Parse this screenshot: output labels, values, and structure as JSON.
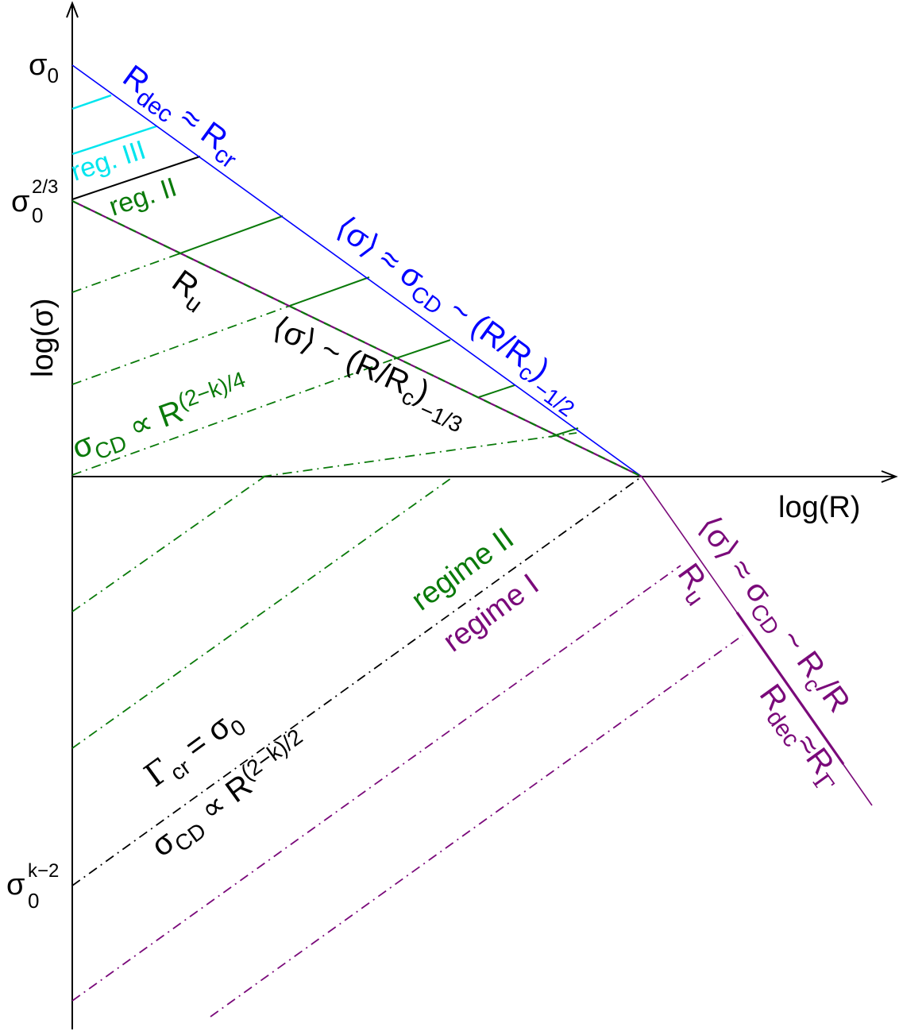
{
  "colors": {
    "axis": "#000000",
    "blue": "#0000ff",
    "cyan": "#00e5ee",
    "green": "#0a7a0a",
    "purple": "#7a0a7a",
    "black": "#000000"
  },
  "axes": {
    "x_label": "log(R)",
    "y_label": "log(σ)",
    "tick_sigma0_base": "σ",
    "tick_sigma0_sub": "0",
    "tick_sigma023_base": "σ",
    "tick_sigma023_sub": "0",
    "tick_sigma023_sup": "2/3",
    "tick_sigmak2_base": "σ",
    "tick_sigmak2_sub": "0",
    "tick_sigmak2_sup": "k−2"
  },
  "labels": {
    "rdec_rcr": {
      "r1": "R",
      "s1": "dec",
      "mid": " ≈ R",
      "s2": "cr"
    },
    "reg3": "reg. III",
    "reg2": "reg. II",
    "ru_upper": {
      "r": "R",
      "s": "u"
    },
    "blue_formula": {
      "lhs": "⟨σ⟩ ≈ σ",
      "sub": "CD",
      "mid": " ~ (R/R",
      "sub2": "c",
      "close": ")",
      "sup": "−1/2"
    },
    "black_formula": {
      "lhs": "⟨σ⟩ ~ (R/R",
      "sub": "c",
      "close": ")",
      "sup": "−1/3"
    },
    "green_formula": {
      "lhs": "σ",
      "sub": "CD",
      "mid": " ∝ R",
      "sup": "(2−k)/4"
    },
    "regime2": "regime II",
    "regime1": "regime I",
    "gamma_cr": {
      "g": "Γ",
      "sub": "cr",
      "rest": " = σ",
      "sub2": "0"
    },
    "sigma_cd_black": {
      "lhs": "σ",
      "sub": "CD",
      "mid": " ∝ R",
      "sup": "(2−k)/2"
    },
    "ru_lower": {
      "r": "R",
      "s": "u"
    },
    "purple_formula": {
      "lhs": "⟨σ⟩ ≈ σ",
      "sub": "CD",
      "mid": " ~ R",
      "sub2": "c",
      "rest": "/R"
    },
    "rdec_rgamma": {
      "r1": "R",
      "s1": "dec",
      "mid": "≈R",
      "s2": "Γ"
    }
  }
}
